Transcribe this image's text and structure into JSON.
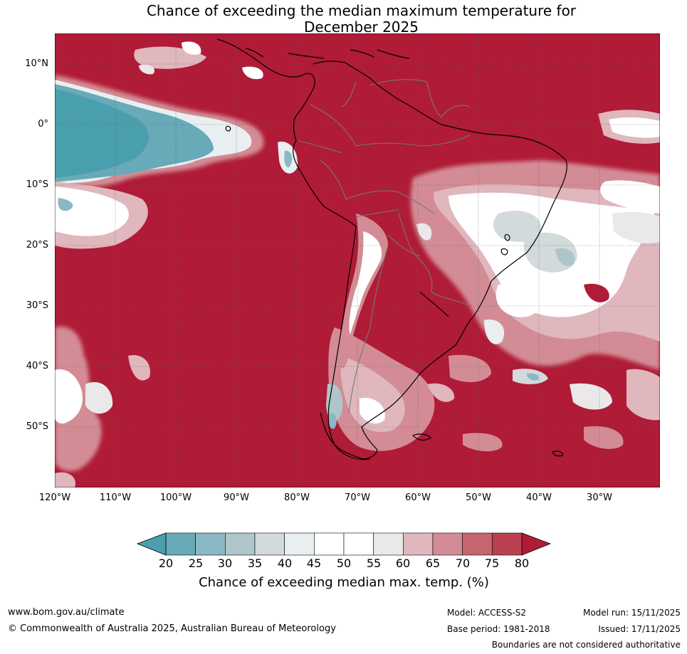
{
  "title_line1": "Chance of exceeding the median maximum temperature for",
  "title_line2": "December 2025",
  "latitude_labels": [
    "10°N",
    "0°",
    "10°S",
    "20°S",
    "30°S",
    "40°S",
    "50°S"
  ],
  "longitude_labels": [
    "120°W",
    "110°W",
    "100°W",
    "90°W",
    "80°W",
    "70°W",
    "60°W",
    "50°W",
    "40°W",
    "30°W"
  ],
  "colorbar": {
    "ticks": [
      "20",
      "25",
      "30",
      "35",
      "40",
      "45",
      "50",
      "55",
      "60",
      "65",
      "70",
      "75",
      "80"
    ],
    "colors": [
      "#4a9fae",
      "#68aab7",
      "#8ab8c4",
      "#aec5ca",
      "#d2dadc",
      "#e9eff1",
      "#ffffff",
      "#ffffff",
      "#ebe8e9",
      "#dfb7bd",
      "#d38c95",
      "#c4656f",
      "#bb4150",
      "#b01b37"
    ],
    "label": "Chance of exceeding median max. temp. (%)"
  },
  "footer": {
    "website": "www.bom.gov.au/climate",
    "copyright": "© Commonwealth of Australia 2025, Australian Bureau of Meteorology",
    "model": "Model: ACCESS-S2",
    "base_period": "Base period: 1981-2018",
    "model_run": "Model run: 15/11/2025",
    "issued": "Issued: 17/11/2025",
    "disclaimer": "Boundaries are not considered authoritative"
  }
}
